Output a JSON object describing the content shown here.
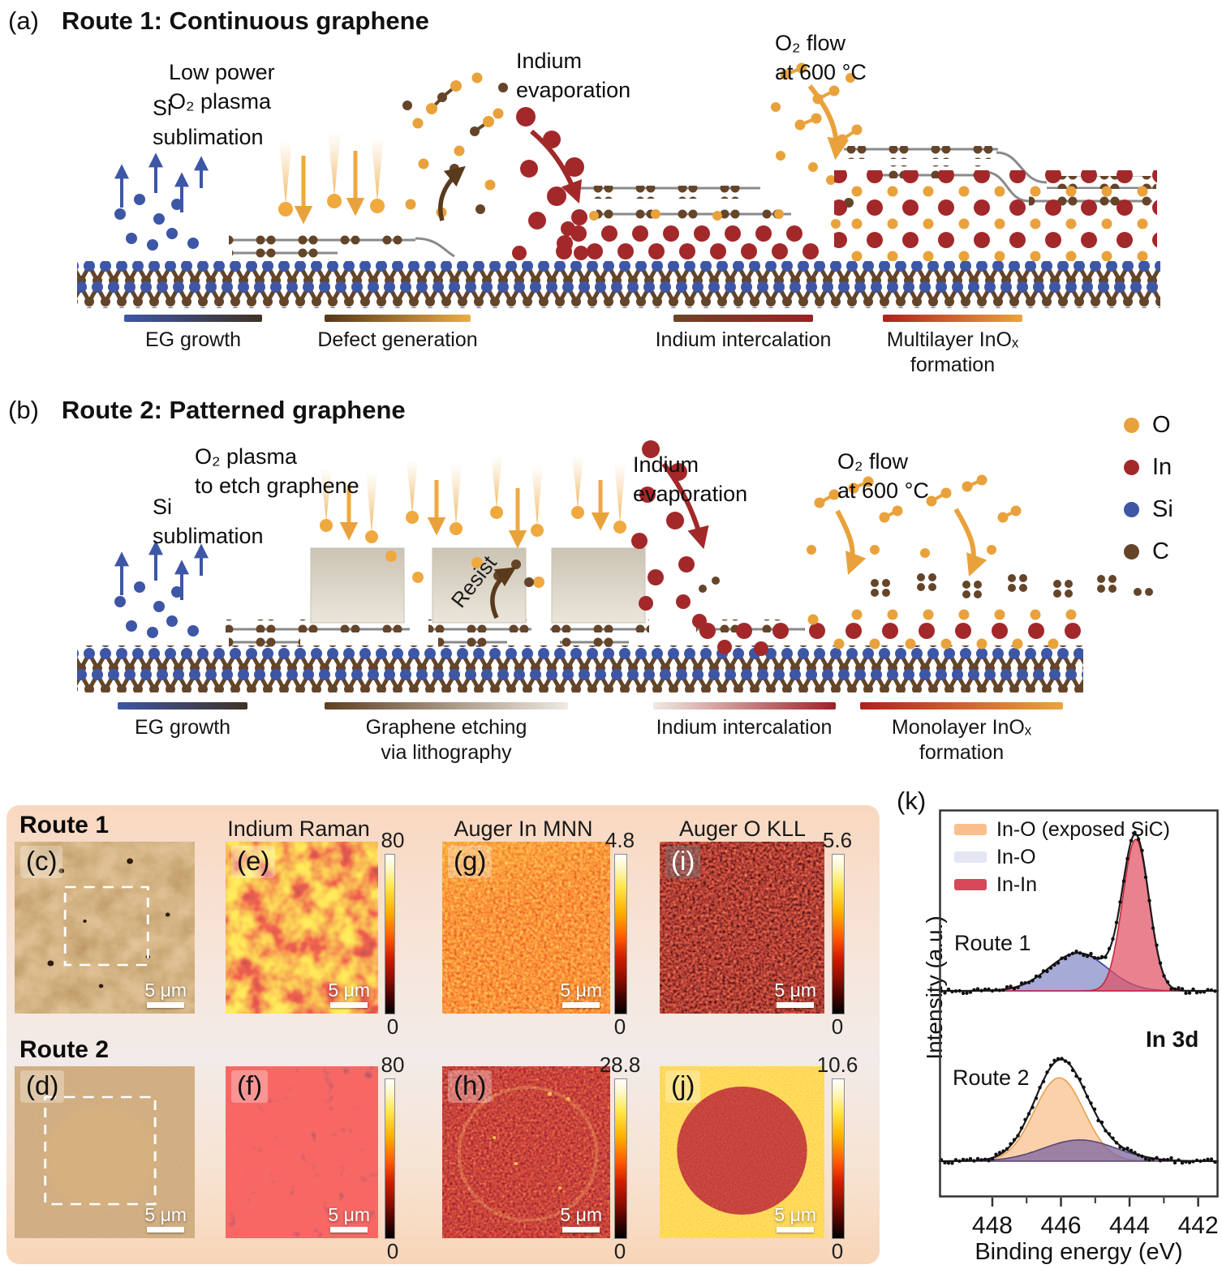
{
  "panel_a": {
    "label": "(a)",
    "title": "Route 1: Continuous graphene",
    "annotations": {
      "si_sublimation": "Si\nsublimation",
      "low_power_plasma": "Low power\nO₂ plasma",
      "indium_evaporation": "Indium\nevaporation",
      "o2_flow": "O₂ flow\nat 600 °C"
    },
    "stages": [
      {
        "label": "EG growth",
        "gradient": [
          "#3D56A6",
          "#403224"
        ]
      },
      {
        "label": "Defect generation",
        "gradient": [
          "#55371b",
          "#eaae45"
        ]
      },
      {
        "label": "Indium intercalation",
        "gradient": [
          "#6b4526",
          "#9c2125"
        ]
      },
      {
        "label": "Multilayer InOₓ\nformation",
        "gradient": [
          "#ae2020",
          "#eba43e"
        ]
      }
    ]
  },
  "panel_b": {
    "label": "(b)",
    "title": "Route 2: Patterned graphene",
    "annotations": {
      "o2_plasma_etch": "O₂ plasma\nto etch graphene",
      "si_sublimation": "Si\nsublimation",
      "resist": "Resist",
      "indium_evaporation": "Indium\nevaporation",
      "o2_flow": "O₂ flow\nat 600 °C"
    },
    "stages": [
      {
        "label": "EG growth",
        "gradient": [
          "#3D56A6",
          "#403224"
        ]
      },
      {
        "label": "Graphene etching\nvia lithography",
        "gradient": [
          "#5f3f20",
          "#efeae2"
        ]
      },
      {
        "label": "Indium intercalation",
        "gradient": [
          "#efe9e2",
          "#a02025"
        ]
      },
      {
        "label": "Monolayer InOₓ\nformation",
        "gradient": [
          "#b02020",
          "#eba43e"
        ]
      }
    ]
  },
  "atom_legend": [
    {
      "symbol": "O",
      "color": "#E9A23B"
    },
    {
      "symbol": "In",
      "color": "#A3282A"
    },
    {
      "symbol": "Si",
      "color": "#3D56A6"
    },
    {
      "symbol": "C",
      "color": "#64452A"
    }
  ],
  "micrographs": {
    "row1_label": "Route 1",
    "row2_label": "Route 2",
    "columns": [
      "Indium Raman",
      "Auger In MNN",
      "Auger O KLL"
    ],
    "panels": {
      "c": {
        "label": "(c)",
        "scale_bar": "5 μm"
      },
      "d": {
        "label": "(d)",
        "scale_bar": "5 μm"
      },
      "e": {
        "label": "(e)",
        "scale_bar": "5 μm",
        "colorbar_max": "80",
        "colorbar_min": "0"
      },
      "f": {
        "label": "(f)",
        "scale_bar": "5 μm",
        "colorbar_max": "80",
        "colorbar_min": "0"
      },
      "g": {
        "label": "(g)",
        "scale_bar": "5 μm",
        "colorbar_max": "4.8",
        "colorbar_min": "0"
      },
      "h": {
        "label": "(h)",
        "scale_bar": "5 μm",
        "colorbar_max": "28.8",
        "colorbar_min": "0"
      },
      "i": {
        "label": "(i)",
        "scale_bar": "5 μm",
        "colorbar_max": "5.6",
        "colorbar_min": "0"
      },
      "j": {
        "label": "(j)",
        "scale_bar": "5 μm",
        "colorbar_max": "10.6",
        "colorbar_min": "0"
      }
    }
  },
  "panel_k": {
    "label": "(k)",
    "route1": "Route 1",
    "route2": "Route 2",
    "species": "In 3d"
  },
  "chart_data": {
    "type": "line",
    "title": "In 3d",
    "xlabel": "Binding energy (eV)",
    "ylabel": "Intensity (a.u.)",
    "x_ticks": [
      448,
      446,
      444,
      442
    ],
    "x_minor_ticks": [
      447,
      445,
      443
    ],
    "x_range": [
      449.56,
      441.4
    ],
    "x_axis_reversed": true,
    "legend": [
      {
        "label": "In-O (exposed SiC)",
        "color": "#F9BF8C"
      },
      {
        "label": "In-O",
        "color": "#E4E6F4"
      },
      {
        "label": "In-In",
        "color": "#D8475A"
      }
    ],
    "spectra": [
      {
        "name": "Route 1",
        "components": [
          {
            "assignment": "In-O",
            "center_eV": 445.5,
            "fwhm_eV": 2.0,
            "rel_amplitude": 0.25,
            "color": "#8289C8",
            "edge": "#3A3F9E"
          },
          {
            "assignment": "In-In",
            "center_eV": 443.82,
            "fwhm_eV": 0.9,
            "rel_amplitude": 1.0,
            "color": "#E05164",
            "edge": "#C22A3D"
          }
        ]
      },
      {
        "name": "Route 2",
        "components": [
          {
            "assignment": "In-O (exposed SiC)",
            "center_eV": 446.05,
            "fwhm_eV": 1.7,
            "rel_amplitude": 0.55,
            "color": "#F9BF8C",
            "edge": "#E8A051"
          },
          {
            "assignment": "In-O",
            "center_eV": 445.45,
            "fwhm_eV": 2.5,
            "rel_amplitude": 0.14,
            "color": "#77639F",
            "edge": "#584879"
          }
        ]
      }
    ]
  }
}
